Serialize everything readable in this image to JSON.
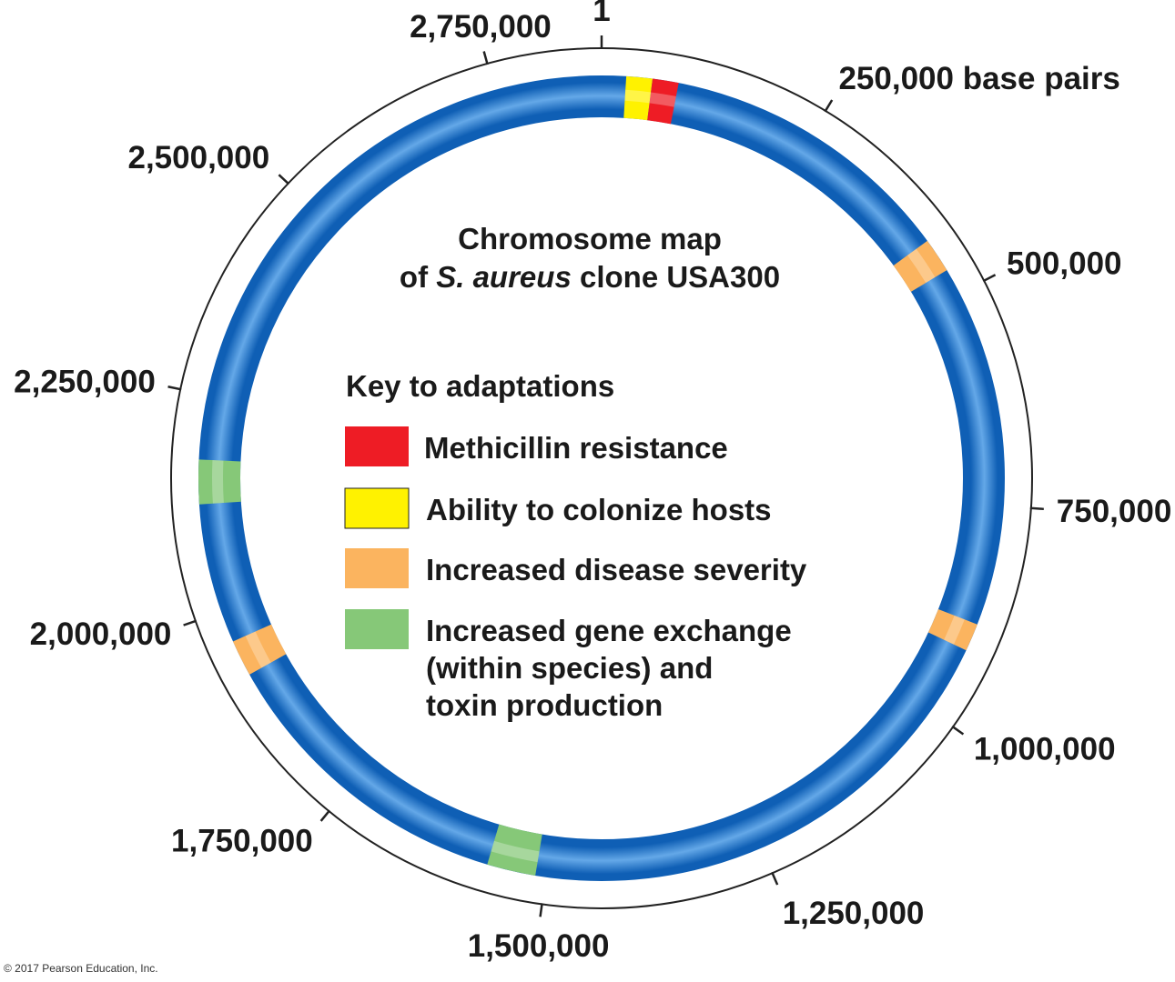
{
  "title": {
    "line1": "Chromosome map",
    "line2_pre": "of ",
    "line2_italic": "S. aureus",
    "line2_post": " clone USA300"
  },
  "key": {
    "title": "Key to adaptations",
    "items": [
      {
        "id": "methicillin",
        "color": "#ee1c25",
        "lines": [
          "Methicillin resistance"
        ]
      },
      {
        "id": "colonize",
        "color": "#fff200",
        "lines": [
          "Ability to colonize hosts"
        ]
      },
      {
        "id": "severity",
        "color": "#fbb45f",
        "lines": [
          "Increased disease severity"
        ]
      },
      {
        "id": "gene-exchange",
        "color": "#86c878",
        "lines": [
          "Increased gene exchange",
          "(within species) and",
          "toxin production"
        ]
      }
    ]
  },
  "chromosome": {
    "total_bp": 2872915,
    "ring_color": "#1565c0",
    "ticks": [
      {
        "bp": 1,
        "label": "1"
      },
      {
        "bp": 250000,
        "label": "250,000 base pairs"
      },
      {
        "bp": 500000,
        "label": "500,000"
      },
      {
        "bp": 750000,
        "label": "750,000"
      },
      {
        "bp": 1000000,
        "label": "1,000,000"
      },
      {
        "bp": 1250000,
        "label": "1,250,000"
      },
      {
        "bp": 1500000,
        "label": "1,500,000"
      },
      {
        "bp": 1750000,
        "label": "1,750,000"
      },
      {
        "bp": 2000000,
        "label": "2,000,000"
      },
      {
        "bp": 2250000,
        "label": "2,250,000"
      },
      {
        "bp": 2500000,
        "label": "2,500,000"
      },
      {
        "bp": 2750000,
        "label": "2,750,000"
      }
    ],
    "regions": [
      {
        "type": "colonize",
        "start_bp": 28000,
        "end_bp": 58000,
        "color": "#fff200"
      },
      {
        "type": "methicillin",
        "start_bp": 58000,
        "end_bp": 88000,
        "color": "#ee1c25"
      },
      {
        "type": "severity",
        "start_bp": 430000,
        "end_bp": 470000,
        "color": "#fbb45f"
      },
      {
        "type": "severity",
        "start_bp": 888000,
        "end_bp": 920000,
        "color": "#fbb45f"
      },
      {
        "type": "gene-exchange",
        "start_bp": 1512000,
        "end_bp": 1568000,
        "color": "#86c878"
      },
      {
        "type": "severity",
        "start_bp": 1922000,
        "end_bp": 1964000,
        "color": "#fbb45f"
      },
      {
        "type": "gene-exchange",
        "start_bp": 2125000,
        "end_bp": 2176000,
        "color": "#86c878"
      }
    ]
  },
  "copyright": "© 2017 Pearson Education, Inc."
}
